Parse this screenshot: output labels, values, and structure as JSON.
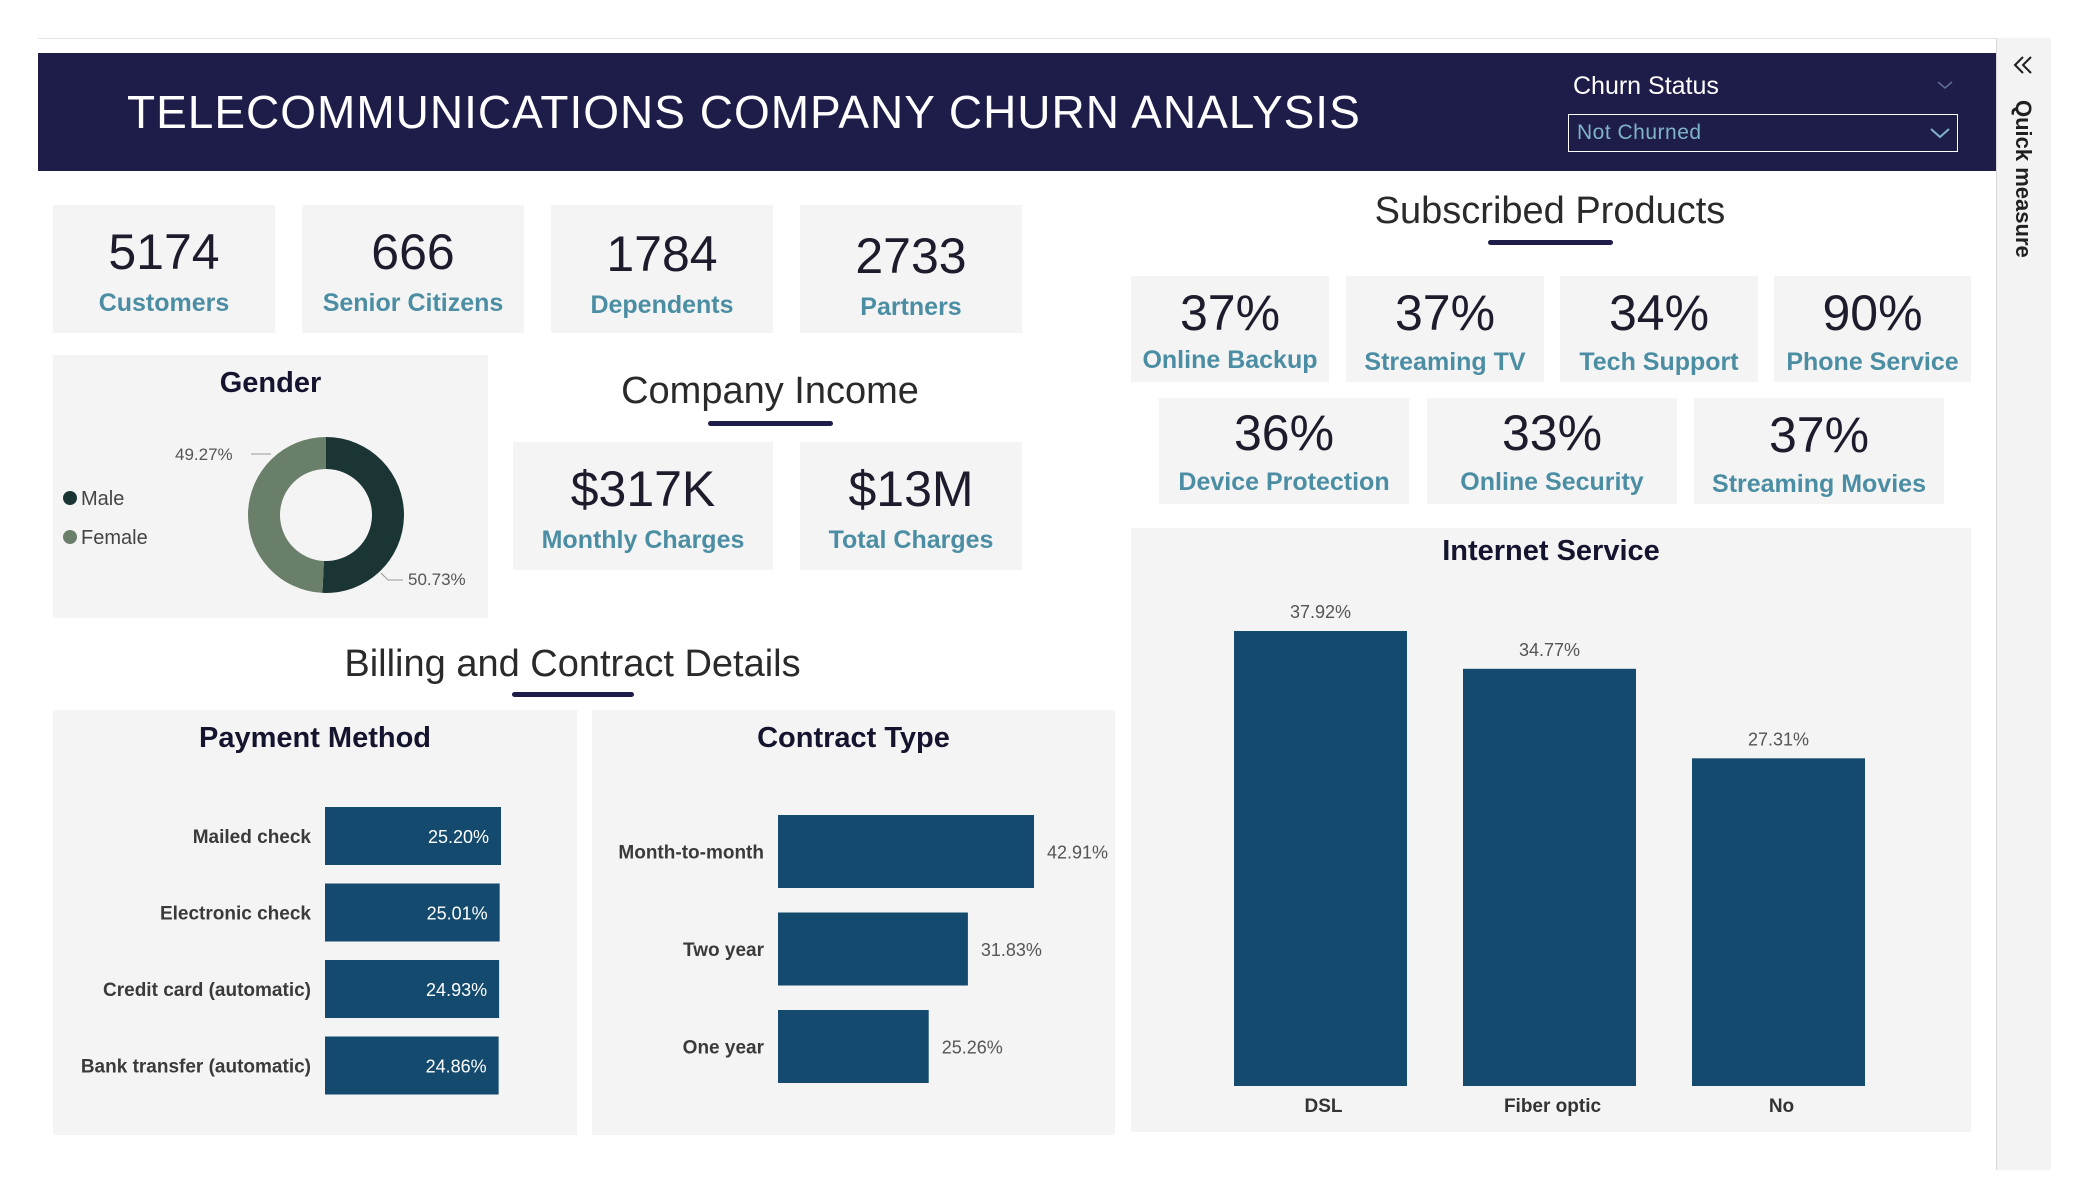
{
  "header": {
    "title": "TELECOMMUNICATIONS COMPANY CHURN ANALYSIS",
    "slicer_label": "Churn Status",
    "slicer_value": "Not Churned"
  },
  "side_pane": {
    "label": "Quick measure"
  },
  "kpis": [
    {
      "value": "5174",
      "label": "Customers"
    },
    {
      "value": "666",
      "label": "Senior Citizens"
    },
    {
      "value": "1784",
      "label": "Dependents"
    },
    {
      "value": "2733",
      "label": "Partners"
    }
  ],
  "company_income": {
    "title": "Company Income",
    "cards": [
      {
        "value": "$317K",
        "label": "Monthly Charges"
      },
      {
        "value": "$13M",
        "label": "Total Charges"
      }
    ]
  },
  "subscribed_products": {
    "title": "Subscribed Products",
    "row1": [
      {
        "value": "37%",
        "label": "Online Backup"
      },
      {
        "value": "37%",
        "label": "Streaming TV"
      },
      {
        "value": "34%",
        "label": "Tech Support"
      },
      {
        "value": "90%",
        "label": "Phone Service"
      }
    ],
    "row2": [
      {
        "value": "36%",
        "label": "Device Protection"
      },
      {
        "value": "33%",
        "label": "Online Security"
      },
      {
        "value": "37%",
        "label": "Streaming Movies"
      }
    ]
  },
  "billing_section": {
    "title": "Billing and Contract Details"
  },
  "colors": {
    "header_bg": "#1e1c48",
    "bar": "#134a6e",
    "accent_label": "#4b8ea4",
    "male": "#1b3535",
    "female": "#6a7f69"
  },
  "chart_data": [
    {
      "id": "gender",
      "type": "pie",
      "title": "Gender",
      "legend": [
        "Male",
        "Female"
      ],
      "legend_position": "left",
      "slices": [
        {
          "name": "Male",
          "value": 50.73,
          "label": "50.73%"
        },
        {
          "name": "Female",
          "value": 49.27,
          "label": "49.27%"
        }
      ]
    },
    {
      "id": "payment_method",
      "type": "bar",
      "orientation": "horizontal",
      "title": "Payment Method",
      "categories": [
        "Mailed check",
        "Electronic check",
        "Credit card (automatic)",
        "Bank transfer (automatic)"
      ],
      "values": [
        25.2,
        25.01,
        24.93,
        24.86
      ],
      "labels": [
        "25.20%",
        "25.01%",
        "24.93%",
        "24.86%"
      ]
    },
    {
      "id": "contract_type",
      "type": "bar",
      "orientation": "horizontal",
      "title": "Contract Type",
      "categories": [
        "Month-to-month",
        "Two year",
        "One year"
      ],
      "values": [
        42.91,
        31.83,
        25.26
      ],
      "labels": [
        "42.91%",
        "31.83%",
        "25.26%"
      ]
    },
    {
      "id": "internet_service",
      "type": "bar",
      "orientation": "vertical",
      "title": "Internet Service",
      "categories": [
        "DSL",
        "Fiber optic",
        "No"
      ],
      "values": [
        37.92,
        34.77,
        27.31
      ],
      "labels": [
        "37.92%",
        "34.77%",
        "27.31%"
      ]
    }
  ]
}
